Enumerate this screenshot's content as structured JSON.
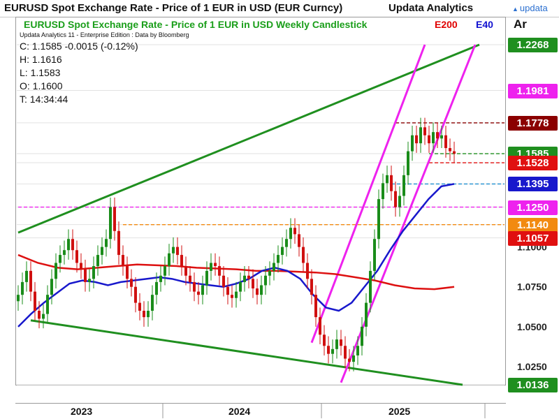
{
  "header": {
    "title": "EURUSD Spot Exchange Rate - Price of 1 EUR in USD (EUR Curncy)",
    "brand": "Updata Analytics",
    "logo_text": "updata"
  },
  "panel": {
    "chart_title": "EURUSD Spot Exchange Rate - Price of 1 EUR in USD Weekly Candlestick",
    "legend_e200": "E200",
    "legend_e40": "E40",
    "subtitle": "Updata Analytics 11 - Enterprise Edition : Data by Bloomberg",
    "close": "C: 1.1585  -0.0015 (-0.12%)",
    "high": "H: 1.1616",
    "low": "L: 1.1583",
    "open": "O: 1.1600",
    "time": "T: 14:34:44",
    "axis_header": "Ar"
  },
  "colors": {
    "bull": "#1a8c1a",
    "bear": "#d01010",
    "trendline": "#1f8f1f",
    "channel": "#ee22ee",
    "e200": "#dd1010",
    "e40": "#1818cc"
  },
  "chart_data": {
    "type": "candlestick",
    "title": "EURUSD Spot Exchange Rate - Price of 1 EUR in USD Weekly Candlestick",
    "timeframe": "weekly",
    "y_axis_ticks": [
      "1.0250",
      "1.0500",
      "1.0750",
      "1.1000"
    ],
    "ylim": [
      1.0136,
      1.2268
    ],
    "x_tick_labels": [
      "2023",
      "2024",
      "2025"
    ],
    "price_tags": [
      {
        "value": "1.2268",
        "color": "#1f8f1f"
      },
      {
        "value": "1.1981",
        "color": "#ee22ee"
      },
      {
        "value": "1.1778",
        "color": "#8b0000"
      },
      {
        "value": "1.1585",
        "color": "#1f8f1f"
      },
      {
        "value": "1.1528",
        "color": "#e01010"
      },
      {
        "value": "1.1395",
        "color": "#1818cc"
      },
      {
        "value": "1.1250",
        "color": "#ee22ee"
      },
      {
        "value": "1.1140",
        "color": "#f28a10"
      },
      {
        "value": "1.1057",
        "color": "#e01010"
      },
      {
        "value": "1.0136",
        "color": "#1f8f1f"
      }
    ],
    "horizontal_levels": [
      {
        "value": 1.1778,
        "color": "#8b0000",
        "from_index": 90
      },
      {
        "value": 1.1585,
        "color": "#1f8f1f",
        "from_index": 98
      },
      {
        "value": 1.1528,
        "color": "#e01010",
        "from_index": 98
      },
      {
        "value": 1.1395,
        "color": "#1f8fd0",
        "from_index": 89
      },
      {
        "value": 1.125,
        "color": "#ee22ee",
        "from_index": 0
      },
      {
        "value": 1.114,
        "color": "#f28a10",
        "from_index": 25
      }
    ],
    "close_series": [
      1.07,
      1.078,
      1.085,
      1.072,
      1.06,
      1.055,
      1.058,
      1.07,
      1.08,
      1.09,
      1.095,
      1.098,
      1.105,
      1.098,
      1.09,
      1.086,
      1.078,
      1.08,
      1.088,
      1.095,
      1.1,
      1.105,
      1.125,
      1.11,
      1.095,
      1.088,
      1.08,
      1.075,
      1.065,
      1.06,
      1.056,
      1.06,
      1.07,
      1.078,
      1.082,
      1.088,
      1.096,
      1.1,
      1.095,
      1.088,
      1.082,
      1.078,
      1.072,
      1.07,
      1.076,
      1.085,
      1.09,
      1.088,
      1.082,
      1.075,
      1.07,
      1.068,
      1.072,
      1.078,
      1.082,
      1.08,
      1.074,
      1.07,
      1.076,
      1.082,
      1.085,
      1.09,
      1.095,
      1.1,
      1.105,
      1.112,
      1.108,
      1.1,
      1.09,
      1.08,
      1.07,
      1.056,
      1.045,
      1.038,
      1.033,
      1.036,
      1.042,
      1.038,
      1.03,
      1.028,
      1.032,
      1.038,
      1.05,
      1.065,
      1.085,
      1.105,
      1.13,
      1.14,
      1.145,
      1.135,
      1.125,
      1.132,
      1.145,
      1.16,
      1.17,
      1.165,
      1.175,
      1.17,
      1.165,
      1.172,
      1.168,
      1.17,
      1.162,
      1.16,
      1.1585
    ],
    "e200_series": [
      1.095,
      1.09,
      1.087,
      1.086,
      1.087,
      1.088,
      1.089,
      1.0885,
      1.088,
      1.087,
      1.0865,
      1.086,
      1.085,
      1.085,
      1.0845,
      1.084,
      1.083,
      1.081,
      1.079,
      1.076,
      1.074,
      1.0735,
      1.075
    ],
    "e40_series": [
      1.05,
      1.058,
      1.065,
      1.071,
      1.077,
      1.079,
      1.078,
      1.076,
      1.078,
      1.079,
      1.08,
      1.081,
      1.08,
      1.078,
      1.077,
      1.076,
      1.075,
      1.077,
      1.08,
      1.085,
      1.087,
      1.085,
      1.08,
      1.07,
      1.062,
      1.06,
      1.065,
      1.075,
      1.085,
      1.098,
      1.11,
      1.12,
      1.13,
      1.138,
      1.1395
    ]
  }
}
